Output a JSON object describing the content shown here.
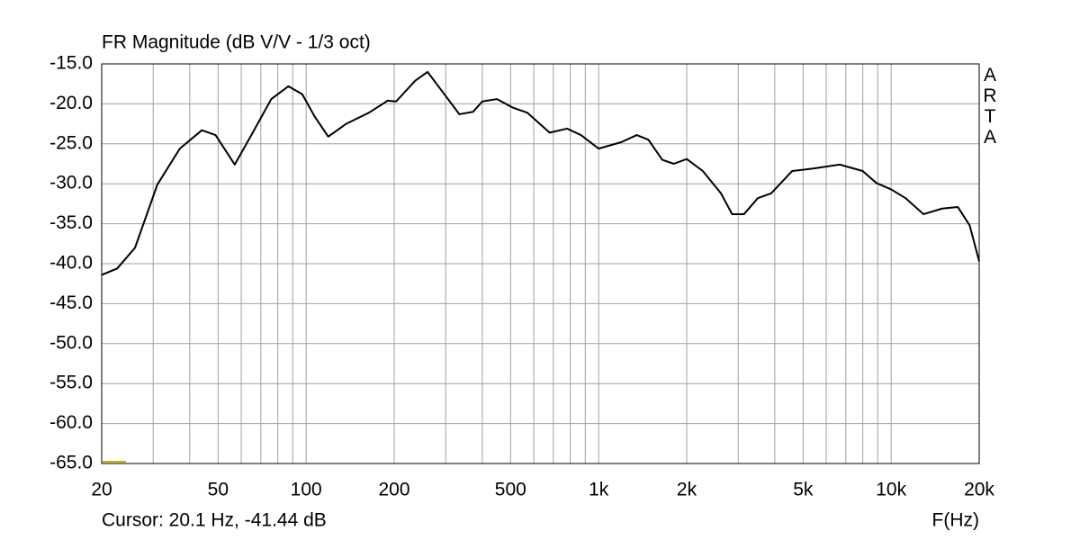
{
  "chart_data": {
    "type": "line",
    "title": "FR Magnitude (dB V/V - 1/3 oct)",
    "x_label": "F(Hz)",
    "annotations": [
      "ARTA",
      "Cursor: 20.1 Hz, -41.44 dB"
    ],
    "xscale": "log",
    "grid": true,
    "xlim": [
      20,
      20000
    ],
    "xticks": [
      20,
      50,
      100,
      200,
      500,
      {
        "value": 1000,
        "label": "1k"
      },
      {
        "value": 2000,
        "label": "2k"
      },
      {
        "value": 5000,
        "label": "5k"
      },
      {
        "value": 10000,
        "label": "10k"
      },
      {
        "value": 20000,
        "label": "20k"
      }
    ],
    "xminorticks": [
      30,
      40,
      60,
      70,
      80,
      90,
      300,
      400,
      600,
      700,
      800,
      900,
      3000,
      4000,
      6000,
      7000,
      8000,
      9000
    ],
    "ylim": [
      -65,
      -15
    ],
    "yticks": [
      {
        "value": -15,
        "label": "-15.0"
      },
      {
        "value": -20,
        "label": "-20.0"
      },
      {
        "value": -25,
        "label": "-25.0"
      },
      {
        "value": -30,
        "label": "-30.0"
      },
      {
        "value": -35,
        "label": "-35.0"
      },
      {
        "value": -40,
        "label": "-40.0"
      },
      {
        "value": -45,
        "label": "-45.0"
      },
      {
        "value": -50,
        "label": "-50.0"
      },
      {
        "value": -55,
        "label": "-55.0"
      },
      {
        "value": -60,
        "label": "-60.0"
      },
      {
        "value": -65,
        "label": "-65.0"
      }
    ],
    "x": [
      20,
      22.6,
      26,
      31,
      37,
      44,
      49,
      57,
      65,
      76,
      87,
      97,
      107,
      119,
      137,
      164,
      190,
      203,
      236,
      260,
      290,
      334,
      372,
      400,
      449,
      511,
      570,
      680,
      780,
      870,
      1000,
      1194,
      1350,
      1480,
      1650,
      1808,
      2000,
      2270,
      2620,
      2860,
      3140,
      3500,
      3890,
      4590,
      5380,
      6670,
      7990,
      8900,
      10000,
      11200,
      12900,
      14950,
      16900,
      18550,
      20000
    ],
    "series": [
      {
        "color": "#000000",
        "values": [
          -41.4,
          -40.6,
          -38.0,
          -30.1,
          -25.6,
          -23.3,
          -23.9,
          -27.6,
          -23.9,
          -19.4,
          -17.8,
          -18.8,
          -21.6,
          -24.1,
          -22.5,
          -21.1,
          -19.6,
          -19.7,
          -17.1,
          -16.0,
          -18.3,
          -21.3,
          -21.0,
          -19.7,
          -19.4,
          -20.5,
          -21.1,
          -23.6,
          -23.1,
          -23.9,
          -25.6,
          -24.8,
          -23.9,
          -24.5,
          -27.0,
          -27.5,
          -26.9,
          -28.4,
          -31.2,
          -33.8,
          -33.8,
          -31.8,
          -31.2,
          -28.4,
          -28.1,
          -27.6,
          -28.4,
          -29.9,
          -30.7,
          -31.8,
          -33.8,
          -33.1,
          -32.9,
          -35.2,
          -39.7
        ]
      }
    ]
  }
}
